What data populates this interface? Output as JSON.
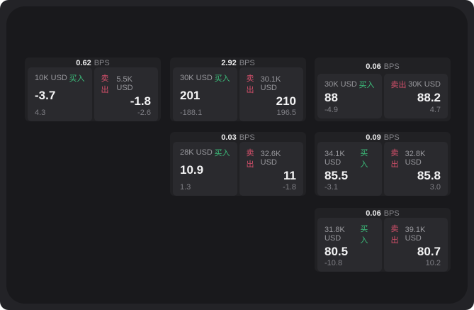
{
  "page": {
    "page_bg": "#232327",
    "surface_bg": "#19191C",
    "card_bg": "#212124",
    "panel_bg": "#2A2A2E",
    "accent_green": "#3CBE7B",
    "accent_red": "#D5506B"
  },
  "labels": {
    "bps_unit": "BPS",
    "buy": "买入",
    "sell": "卖出"
  },
  "cards": [
    {
      "bps": "0.62",
      "col": 0,
      "row": 0,
      "buy": {
        "size": "10K USD",
        "price": "-3.7",
        "delta": "4.3"
      },
      "sell": {
        "size": "5.5K USD",
        "price": "-1.8",
        "delta": "-2.6"
      }
    },
    {
      "bps": "2.92",
      "col": 1,
      "row": 0,
      "buy": {
        "size": "30K USD",
        "price": "201",
        "delta": "-188.1"
      },
      "sell": {
        "size": "30.1K USD",
        "price": "210",
        "delta": "196.5"
      }
    },
    {
      "bps": "0.06",
      "col": 2,
      "row": 0,
      "buy": {
        "size": "30K USD",
        "price": "88",
        "delta": "-4.9"
      },
      "sell": {
        "size": "30K USD",
        "price": "88.2",
        "delta": "4.7"
      }
    },
    {
      "bps": "0.03",
      "col": 1,
      "row": 1,
      "buy": {
        "size": "28K USD",
        "price": "10.9",
        "delta": "1.3"
      },
      "sell": {
        "size": "32.6K USD",
        "price": "11",
        "delta": "-1.8"
      }
    },
    {
      "bps": "0.09",
      "col": 2,
      "row": 1,
      "buy": {
        "size": "34.1K USD",
        "price": "85.5",
        "delta": "-3.1"
      },
      "sell": {
        "size": "32.8K USD",
        "price": "85.8",
        "delta": "3.0"
      }
    },
    {
      "bps": "0.06",
      "col": 2,
      "row": 2,
      "buy": {
        "size": "31.8K USD",
        "price": "80.5",
        "delta": "-10.8"
      },
      "sell": {
        "size": "39.1K USD",
        "price": "80.7",
        "delta": "10.2"
      }
    }
  ]
}
